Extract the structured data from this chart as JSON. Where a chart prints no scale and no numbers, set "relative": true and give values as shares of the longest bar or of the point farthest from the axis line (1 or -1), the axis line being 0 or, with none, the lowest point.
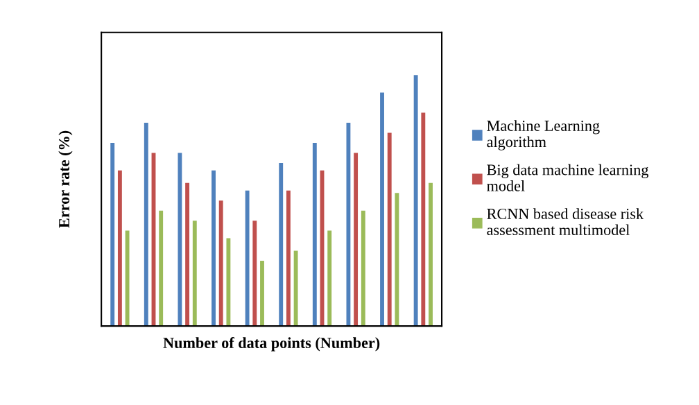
{
  "chart_data": {
    "type": "bar",
    "relative": true,
    "xlabel": "Number of data points (Number)",
    "ylabel": "Error rate (%)",
    "categories": [
      null,
      null,
      null,
      null,
      null,
      null,
      null,
      null,
      null,
      null
    ],
    "legend": "right",
    "grid": false,
    "series": [
      {
        "name": "Machine Learning\nalgorithm",
        "color": "#4f81bd",
        "values": [
          0.73,
          0.81,
          0.69,
          0.62,
          0.54,
          0.65,
          0.73,
          0.81,
          0.93,
          1
        ]
      },
      {
        "name": "Big data machine learning\nmodel",
        "color": "#c0504d",
        "values": [
          0.62,
          0.69,
          0.57,
          0.5,
          0.42,
          0.54,
          0.62,
          0.69,
          0.77,
          0.85
        ]
      },
      {
        "name": "RCNN based disease risk\nassessment multimodel",
        "color": "#9bbb59",
        "values": [
          0.38,
          0.46,
          0.42,
          0.35,
          0.26,
          0.3,
          0.38,
          0.46,
          0.53,
          0.57
        ]
      }
    ]
  }
}
